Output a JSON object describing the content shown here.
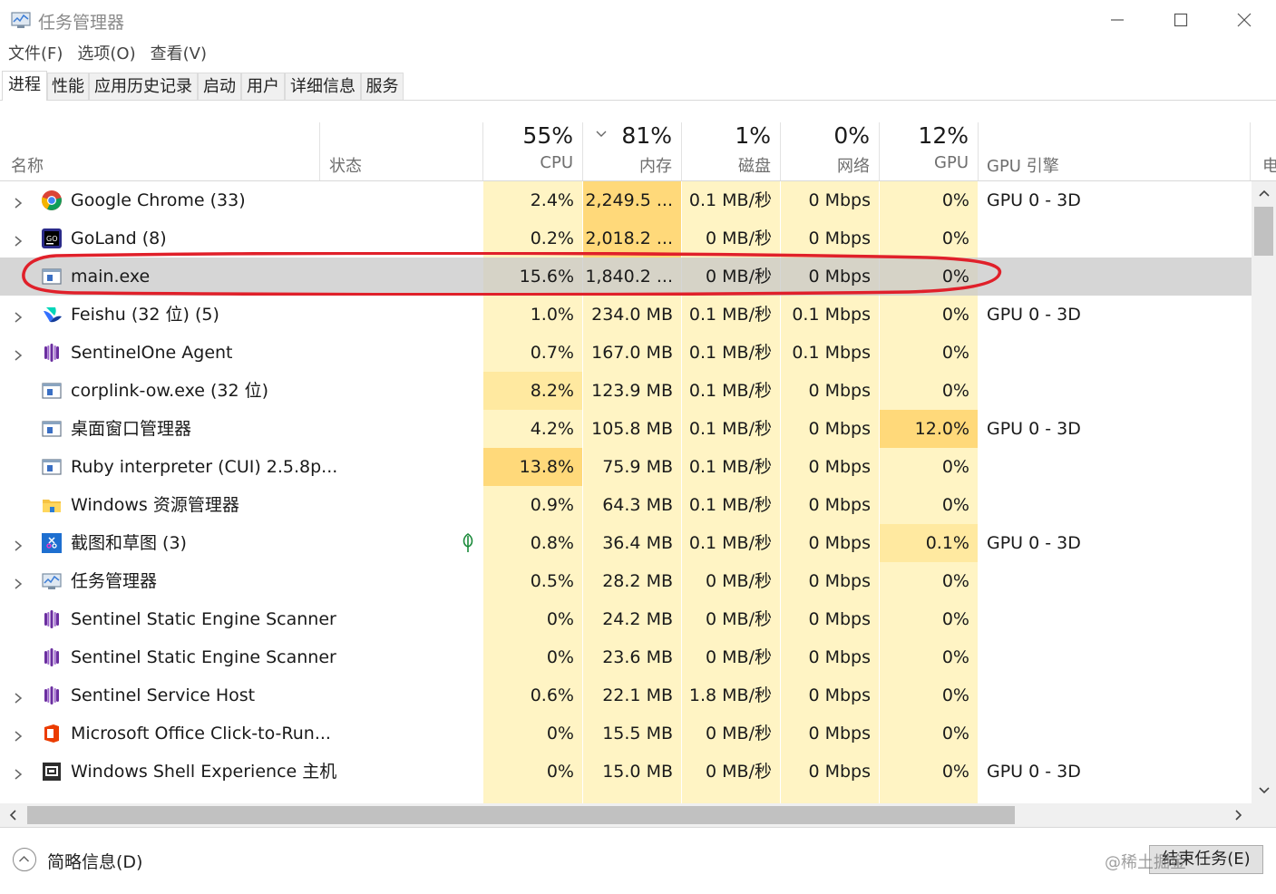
{
  "window": {
    "title": "任务管理器"
  },
  "menu": [
    "文件(F)",
    "选项(O)",
    "查看(V)"
  ],
  "tabs": [
    "进程",
    "性能",
    "应用历史记录",
    "启动",
    "用户",
    "详细信息",
    "服务"
  ],
  "columns": {
    "name": "名称",
    "status": "状态",
    "cpu": {
      "pct": "55%",
      "label": "CPU"
    },
    "memory": {
      "pct": "81%",
      "label": "内存"
    },
    "disk": {
      "pct": "1%",
      "label": "磁盘"
    },
    "network": {
      "pct": "0%",
      "label": "网络"
    },
    "gpu": {
      "pct": "12%",
      "label": "GPU"
    },
    "gpu_engine": "GPU 引擎",
    "power": "电"
  },
  "processes": [
    {
      "name": "Google Chrome (33)",
      "expand": true,
      "icon": "chrome-icon",
      "cpu": "2.4%",
      "mem": "2,249.5 ...",
      "disk": "0.1 MB/秒",
      "net": "0 Mbps",
      "gpu": "0%",
      "engine": "GPU 0 - 3D"
    },
    {
      "name": "GoLand (8)",
      "expand": true,
      "icon": "goland-icon",
      "cpu": "0.2%",
      "mem": "2,018.2 ...",
      "disk": "0 MB/秒",
      "net": "0 Mbps",
      "gpu": "0%",
      "engine": ""
    },
    {
      "name": "main.exe",
      "expand": false,
      "icon": "app-window-icon",
      "cpu": "15.6%",
      "mem": "1,840.2 ...",
      "disk": "0 MB/秒",
      "net": "0 Mbps",
      "gpu": "0%",
      "engine": "",
      "selected": true
    },
    {
      "name": "Feishu (32 位) (5)",
      "expand": true,
      "icon": "feishu-icon",
      "cpu": "1.0%",
      "mem": "234.0 MB",
      "disk": "0.1 MB/秒",
      "net": "0.1 Mbps",
      "gpu": "0%",
      "engine": "GPU 0 - 3D"
    },
    {
      "name": "SentinelOne Agent",
      "expand": true,
      "icon": "sentinel-icon",
      "cpu": "0.7%",
      "mem": "167.0 MB",
      "disk": "0.1 MB/秒",
      "net": "0.1 Mbps",
      "gpu": "0%",
      "engine": ""
    },
    {
      "name": "corplink-ow.exe (32 位)",
      "expand": false,
      "icon": "app-window-icon",
      "cpu": "8.2%",
      "mem": "123.9 MB",
      "disk": "0.1 MB/秒",
      "net": "0 Mbps",
      "gpu": "0%",
      "engine": ""
    },
    {
      "name": "桌面窗口管理器",
      "expand": false,
      "icon": "app-window-icon",
      "cpu": "4.2%",
      "mem": "105.8 MB",
      "disk": "0.1 MB/秒",
      "net": "0 Mbps",
      "gpu": "12.0%",
      "engine": "GPU 0 - 3D"
    },
    {
      "name": "Ruby interpreter (CUI) 2.5.8p...",
      "expand": false,
      "icon": "app-window-icon",
      "cpu": "13.8%",
      "mem": "75.9 MB",
      "disk": "0.1 MB/秒",
      "net": "0 Mbps",
      "gpu": "0%",
      "engine": ""
    },
    {
      "name": "Windows 资源管理器",
      "expand": false,
      "icon": "folder-icon",
      "cpu": "0.9%",
      "mem": "64.3 MB",
      "disk": "0.1 MB/秒",
      "net": "0 Mbps",
      "gpu": "0%",
      "engine": ""
    },
    {
      "name": "截图和草图 (3)",
      "expand": true,
      "icon": "snip-icon",
      "cpu": "0.8%",
      "mem": "36.4 MB",
      "disk": "0.1 MB/秒",
      "net": "0 Mbps",
      "gpu": "0.1%",
      "engine": "GPU 0 - 3D",
      "status_icon": "leaf-icon"
    },
    {
      "name": "任务管理器",
      "expand": true,
      "icon": "taskmgr-icon",
      "cpu": "0.5%",
      "mem": "28.2 MB",
      "disk": "0 MB/秒",
      "net": "0 Mbps",
      "gpu": "0%",
      "engine": ""
    },
    {
      "name": "Sentinel Static Engine Scanner",
      "expand": false,
      "icon": "sentinel-icon",
      "cpu": "0%",
      "mem": "24.2 MB",
      "disk": "0 MB/秒",
      "net": "0 Mbps",
      "gpu": "0%",
      "engine": ""
    },
    {
      "name": "Sentinel Static Engine Scanner",
      "expand": false,
      "icon": "sentinel-icon",
      "cpu": "0%",
      "mem": "23.6 MB",
      "disk": "0 MB/秒",
      "net": "0 Mbps",
      "gpu": "0%",
      "engine": ""
    },
    {
      "name": "Sentinel Service Host",
      "expand": true,
      "icon": "sentinel-icon",
      "cpu": "0.6%",
      "mem": "22.1 MB",
      "disk": "1.8 MB/秒",
      "net": "0 Mbps",
      "gpu": "0%",
      "engine": ""
    },
    {
      "name": "Microsoft Office Click-to-Run...",
      "expand": true,
      "icon": "office-icon",
      "cpu": "0%",
      "mem": "15.5 MB",
      "disk": "0 MB/秒",
      "net": "0 Mbps",
      "gpu": "0%",
      "engine": ""
    },
    {
      "name": "Windows Shell Experience 主机",
      "expand": true,
      "icon": "shell-icon",
      "cpu": "0%",
      "mem": "15.0 MB",
      "disk": "0 MB/秒",
      "net": "0 Mbps",
      "gpu": "0%",
      "engine": "GPU 0 - 3D"
    }
  ],
  "footer": {
    "summary": "简略信息(D)",
    "end_task": "结束任务(E)",
    "watermark": "@稀土掘金"
  },
  "colors": {
    "heat_light": "#fff4c4",
    "heat_medium": "#ffe9a0",
    "heat_strong": "#ffd97a",
    "selection": "#c8c8c8",
    "annotation": "#e0202a"
  }
}
